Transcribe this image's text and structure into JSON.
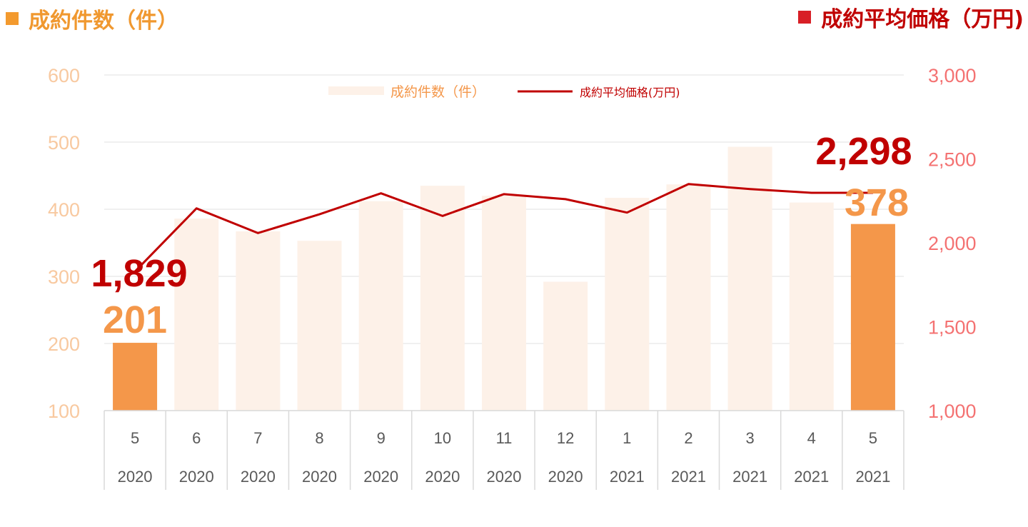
{
  "header": {
    "left_title": "成約件数（件）",
    "right_title": "成約平均価格（万円)"
  },
  "colors": {
    "bar_faded": "#FDF1E8",
    "bar_highlight": "#F4974A",
    "line": "#C00000",
    "left_axis": "#F8C9A0",
    "right_axis": "#F47272",
    "grid": "#E6E6E6",
    "table_border": "#D9D9D9",
    "table_text": "#595959",
    "count_label": "#F4974A",
    "price_label": "#C00000"
  },
  "chart_data": {
    "type": "bar",
    "categories": [
      "5",
      "6",
      "7",
      "8",
      "9",
      "10",
      "11",
      "12",
      "1",
      "2",
      "3",
      "4",
      "5"
    ],
    "years": [
      "2020",
      "2020",
      "2020",
      "2020",
      "2020",
      "2020",
      "2020",
      "2020",
      "2021",
      "2021",
      "2021",
      "2021",
      "2021"
    ],
    "series": [
      {
        "name": "成約件数（件）",
        "type": "bar",
        "axis": "left",
        "values": [
          201,
          386,
          367,
          353,
          412,
          435,
          420,
          292,
          417,
          437,
          493,
          410,
          378
        ],
        "highlight": [
          true,
          false,
          false,
          false,
          false,
          false,
          false,
          false,
          false,
          false,
          false,
          false,
          true
        ]
      },
      {
        "name": "成約平均価格(万円)",
        "type": "line",
        "axis": "right",
        "values": [
          1829,
          2205,
          2058,
          2170,
          2295,
          2160,
          2290,
          2260,
          2180,
          2350,
          2320,
          2298,
          2298
        ]
      }
    ],
    "y_left": {
      "ticks": [
        "100",
        "200",
        "300",
        "400",
        "500",
        "600"
      ],
      "range": [
        100,
        600
      ]
    },
    "y_right": {
      "ticks": [
        "1,000",
        "1,500",
        "2,000",
        "2,500",
        "3,000"
      ],
      "range": [
        1000,
        3000
      ]
    },
    "annotations": {
      "first_price": "1,829",
      "first_count": "201",
      "last_price": "2,298",
      "last_count": "378"
    },
    "legend_position": "top-center",
    "grid": true
  }
}
